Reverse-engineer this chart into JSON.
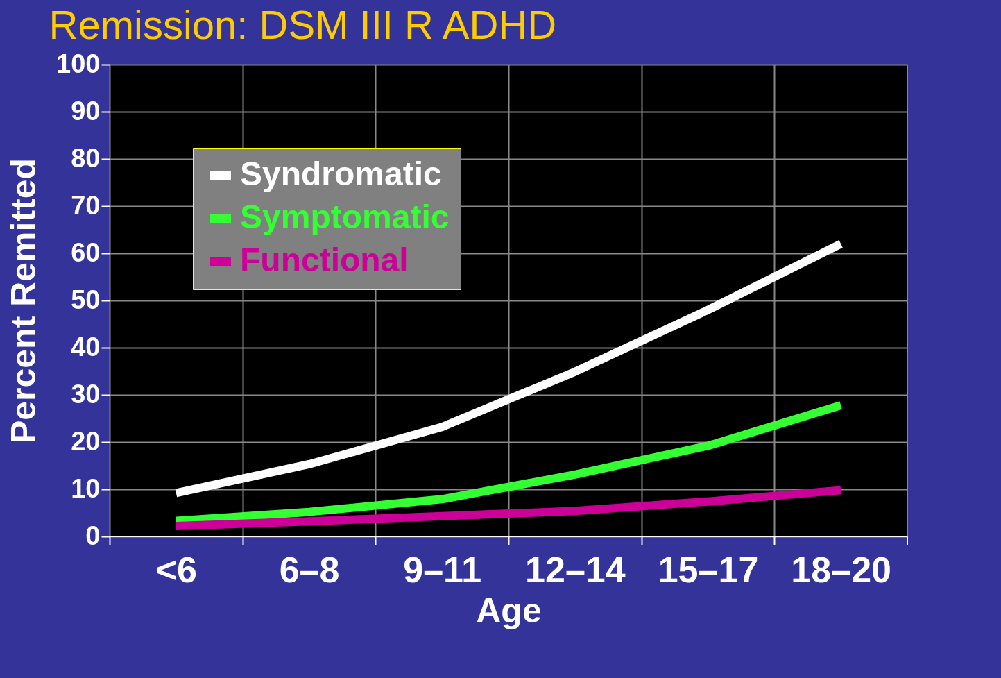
{
  "chart_data": {
    "type": "line",
    "title": "Remission: DSM III R ADHD",
    "xlabel": "Age",
    "ylabel": "Percent Remitted",
    "categories": [
      "<6",
      "6–8",
      "9–11",
      "12–14",
      "15–17",
      "18–20"
    ],
    "series": [
      {
        "name": "Syndromatic",
        "color": "#ffffff",
        "values": [
          9.2,
          15.3,
          23.2,
          34.9,
          48,
          62
        ]
      },
      {
        "name": "Symptomatic",
        "color": "#33ff33",
        "values": [
          3.3,
          5.2,
          7.9,
          13.1,
          19.2,
          27.8
        ]
      },
      {
        "name": "Functional",
        "color": "#cc0099",
        "values": [
          2.2,
          3.2,
          4.3,
          5.4,
          7.4,
          9.8
        ]
      }
    ],
    "ylim": [
      0,
      100
    ],
    "yticks": [
      0,
      10,
      20,
      30,
      40,
      50,
      60,
      70,
      80,
      90,
      100
    ],
    "grid": true,
    "legend": "top left",
    "marker": "none",
    "line_style": "solid"
  }
}
